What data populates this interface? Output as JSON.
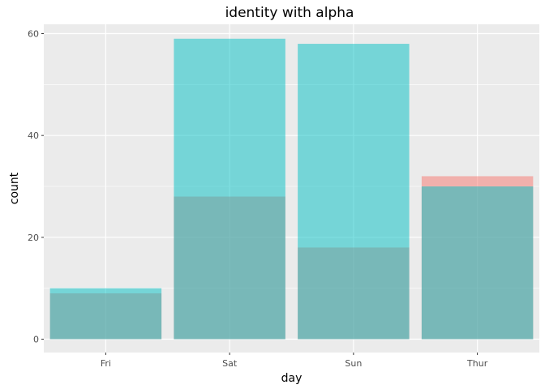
{
  "chart_data": {
    "type": "bar",
    "title": "identity with alpha",
    "xlabel": "day",
    "ylabel": "count",
    "categories": [
      "Fri",
      "Sat",
      "Sun",
      "Thur"
    ],
    "ylim": [
      0,
      61
    ],
    "yticks": [
      0,
      20,
      40,
      60
    ],
    "grid": true,
    "legend": "none",
    "position": "identity",
    "alpha": 0.5,
    "series": [
      {
        "values": [
          9,
          28,
          18,
          32
        ],
        "color": "#F8766D"
      },
      {
        "values": [
          10,
          59,
          58,
          30
        ],
        "color": "#00BFC4"
      }
    ]
  }
}
